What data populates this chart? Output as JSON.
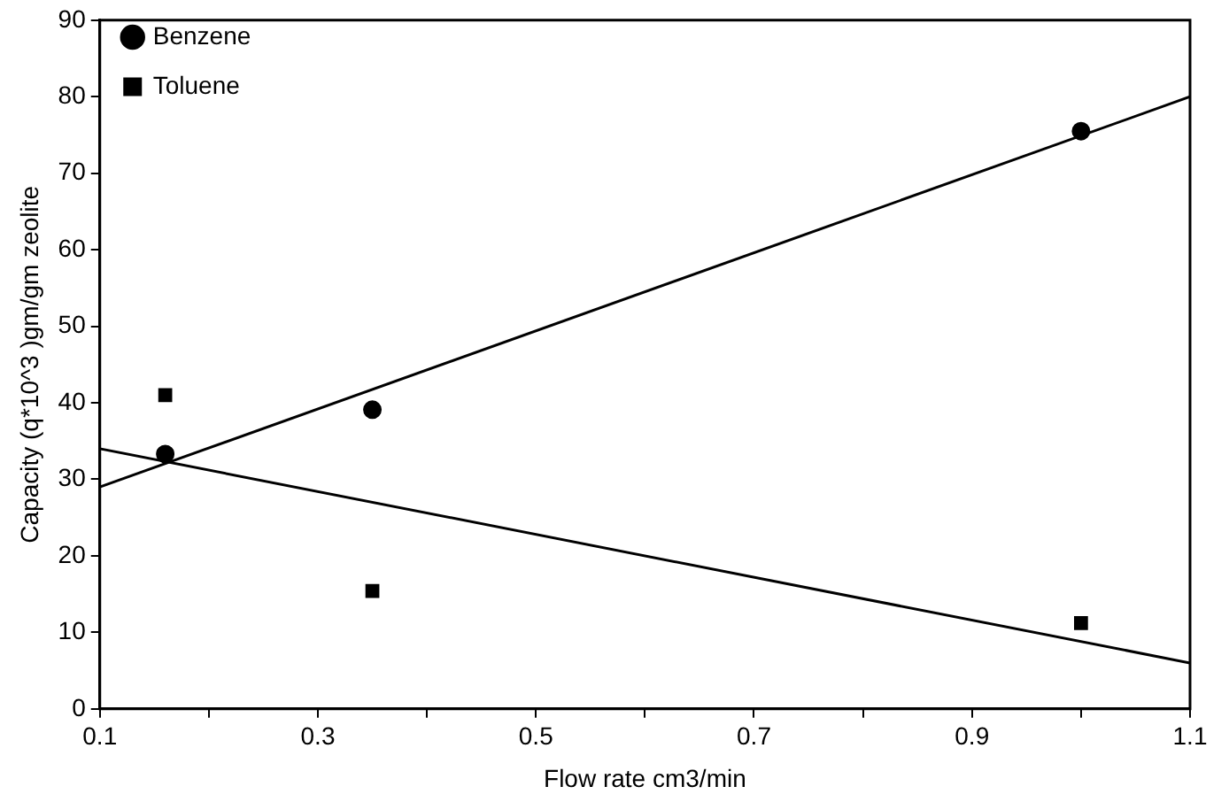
{
  "chart_data": {
    "type": "scatter",
    "xlabel": "Flow rate cm3/min",
    "ylabel": "Capacity (q*10^3 )gm/gm zeolite",
    "xlim": [
      0.1,
      1.1
    ],
    "xticks": [
      0.1,
      {
        "value": 0.2,
        "label": null
      },
      0.3,
      {
        "value": 0.4,
        "label": null
      },
      0.5,
      {
        "value": 0.6,
        "label": null
      },
      0.7,
      {
        "value": 0.8,
        "label": null
      },
      0.9,
      {
        "value": 1.0,
        "label": null
      },
      1.1
    ],
    "ylim": [
      0,
      90
    ],
    "yticks": [
      0,
      10,
      20,
      30,
      40,
      50,
      60,
      70,
      80,
      90
    ],
    "grid": false,
    "legend": "top left",
    "series": [
      {
        "name": "Benzene",
        "color": "#000000",
        "marker": "circle",
        "x": [
          0.16,
          0.35,
          1.0
        ],
        "values": [
          33.3,
          39.1,
          75.5
        ]
      },
      {
        "name": "Toluene",
        "color": "#000000",
        "marker": "square",
        "x": [
          0.16,
          0.35,
          1.0
        ],
        "values": [
          41,
          15.4,
          11.2
        ]
      },
      {
        "type": "line",
        "color": "#000000",
        "marker": "none",
        "x": [
          0.1,
          1.1
        ],
        "values": [
          29,
          80
        ]
      },
      {
        "type": "line",
        "color": "#000000",
        "marker": "none",
        "x": [
          0.1,
          1.1
        ],
        "values": [
          34,
          6
        ]
      }
    ]
  }
}
